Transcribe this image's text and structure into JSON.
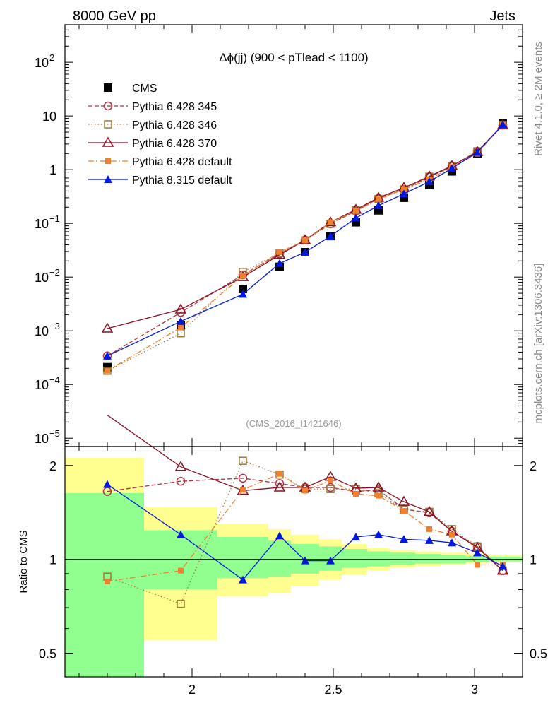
{
  "header": {
    "left": "8000 GeV pp",
    "right": "Jets"
  },
  "side_labels": {
    "rivet": "Rivet 4.1.0, ≥ 2M events",
    "mcplots": "mcplots.cern.ch [arXiv:1306.3436]"
  },
  "colors": {
    "CMS": "#000000",
    "p345": "#b03040",
    "p346": "#a07838",
    "p370": "#8b1020",
    "p6def": "#f08030",
    "p8def": "#0018e0",
    "band_outer": "#ffff90",
    "band_inner": "#90ff90"
  },
  "chart_data": {
    "type": "line",
    "title": "Δϕ(jj) (900 < pTlead <  1100)",
    "analysis_tag": "(CMS_2016_I1421646)",
    "xlim": [
      1.55,
      3.17
    ],
    "main": {
      "ylim": [
        7e-06,
        500
      ],
      "scale": "log",
      "yticks": [
        {
          "value": 1e-05,
          "base": "10",
          "exp": "−5"
        },
        {
          "value": 0.0001,
          "base": "10",
          "exp": "−4"
        },
        {
          "value": 0.001,
          "base": "10",
          "exp": "−3"
        },
        {
          "value": 0.01,
          "base": "10",
          "exp": "−2"
        },
        {
          "value": 0.1,
          "base": "10",
          "exp": "−1"
        },
        {
          "value": 1,
          "base": "1",
          "exp": ""
        },
        {
          "value": 10,
          "base": "10",
          "exp": ""
        },
        {
          "value": 100,
          "base": "10",
          "exp": "2"
        }
      ]
    },
    "ratio": {
      "ylabel": "Ratio to CMS",
      "ylim": [
        0.42,
        2.3
      ],
      "scale": "log",
      "yticks": [
        {
          "value": 0.5,
          "label": "0.5"
        },
        {
          "value": 1,
          "label": "1"
        },
        {
          "value": 2,
          "label": "2"
        }
      ]
    },
    "xticks": [
      {
        "value": 2,
        "label": "2"
      },
      {
        "value": 2.5,
        "label": "2.5"
      },
      {
        "value": 3,
        "label": "3"
      }
    ],
    "x": [
      1.7,
      1.96,
      2.18,
      2.31,
      2.4,
      2.49,
      2.58,
      2.66,
      2.75,
      2.84,
      2.92,
      3.01,
      3.1
    ],
    "series": [
      {
        "key": "CMS",
        "name": "CMS",
        "marker": "square-filled",
        "dash": "none",
        "values": [
          0.00021,
          0.00125,
          0.006,
          0.0155,
          0.029,
          0.058,
          0.105,
          0.175,
          0.3,
          0.52,
          0.93,
          2.0,
          7.3
        ]
      },
      {
        "key": "p345",
        "name": "Pythia 6.428 345",
        "marker": "circle-open",
        "dash": "6,3",
        "values": [
          0.00034,
          0.0022,
          0.011,
          0.027,
          0.049,
          0.098,
          0.17,
          0.29,
          0.43,
          0.73,
          1.15,
          2.2,
          6.8
        ]
      },
      {
        "key": "p346",
        "name": "Pythia 6.428 346",
        "marker": "square-open",
        "dash": "1.5,3",
        "values": [
          0.00018,
          0.0009,
          0.0125,
          0.028,
          0.048,
          0.098,
          0.175,
          0.285,
          0.43,
          0.74,
          1.18,
          2.2,
          6.8
        ]
      },
      {
        "key": "p370",
        "name": "Pythia 6.428 370",
        "marker": "triangle-open",
        "dash": "none",
        "values": [
          0.0011,
          0.0025,
          0.01,
          0.026,
          0.049,
          0.105,
          0.18,
          0.3,
          0.46,
          0.75,
          1.18,
          2.15,
          6.7
        ]
      },
      {
        "key": "p6def",
        "name": "Pythia 6.428 default",
        "marker": "square-small-filled",
        "dash": "8,3,2,3",
        "values": [
          0.00018,
          0.00115,
          0.0105,
          0.0292,
          0.048,
          0.105,
          0.17,
          0.28,
          0.43,
          0.66,
          1.12,
          1.98,
          7.0
        ]
      },
      {
        "key": "p8def",
        "name": "Pythia 8.315 default",
        "marker": "triangle-filled",
        "dash": "none",
        "values": [
          0.00034,
          0.0015,
          0.0048,
          0.018,
          0.029,
          0.058,
          0.126,
          0.214,
          0.355,
          0.6,
          1.06,
          2.1,
          6.9
        ]
      }
    ],
    "ratio_series": [
      {
        "key": "p345",
        "values": [
          1.65,
          1.78,
          1.82,
          1.75,
          1.7,
          1.7,
          1.65,
          1.67,
          1.45,
          1.41,
          1.23,
          1.1,
          0.92
        ]
      },
      {
        "key": "p346",
        "values": [
          0.88,
          0.72,
          2.07,
          1.87,
          1.68,
          1.68,
          1.68,
          1.63,
          1.44,
          1.42,
          1.25,
          1.1,
          0.92
        ]
      },
      {
        "key": "p370",
        "values": [
          2.9,
          1.98,
          1.66,
          1.7,
          1.7,
          1.84,
          1.69,
          1.7,
          1.53,
          1.42,
          1.23,
          1.09,
          0.92
        ]
      },
      {
        "key": "p6def",
        "values": [
          0.85,
          0.92,
          1.67,
          1.88,
          1.66,
          1.79,
          1.62,
          1.6,
          1.43,
          1.25,
          1.2,
          0.96,
          0.96
        ]
      },
      {
        "key": "p8def",
        "values": [
          1.74,
          1.2,
          0.86,
          1.19,
          0.99,
          0.99,
          1.18,
          1.2,
          1.16,
          1.15,
          1.13,
          1.05,
          0.95
        ]
      }
    ],
    "uncertainty_bands": {
      "edges": [
        1.55,
        1.83,
        2.09,
        2.27,
        2.35,
        2.45,
        2.53,
        2.62,
        2.7,
        2.79,
        2.88,
        2.97,
        3.05,
        3.17
      ],
      "outer_low": [
        0.42,
        0.55,
        0.76,
        0.78,
        0.82,
        0.86,
        0.89,
        0.92,
        0.94,
        0.95,
        0.96,
        0.97,
        0.98
      ],
      "outer_high": [
        2.12,
        1.47,
        1.3,
        1.25,
        1.2,
        1.16,
        1.12,
        1.09,
        1.07,
        1.06,
        1.05,
        1.04,
        1.03
      ],
      "inner_low": [
        0.42,
        0.8,
        0.87,
        0.88,
        0.9,
        0.92,
        0.94,
        0.95,
        0.96,
        0.97,
        0.97,
        0.98,
        0.985
      ],
      "inner_high": [
        1.63,
        1.24,
        1.18,
        1.15,
        1.12,
        1.1,
        1.08,
        1.06,
        1.05,
        1.04,
        1.03,
        1.025,
        1.02
      ]
    }
  }
}
